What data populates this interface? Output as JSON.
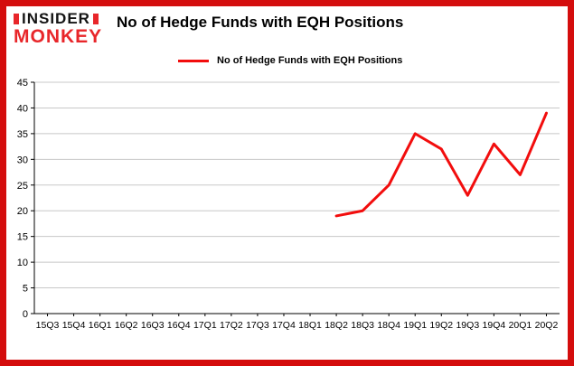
{
  "branding": {
    "logo_line1": "INSIDER",
    "logo_line2": "MONKEY",
    "logo_accent_color": "#e8262a",
    "frame_color": "#d40d0d"
  },
  "header": {
    "title": "No of Hedge Funds with EQH Positions"
  },
  "legend": {
    "label": "No of Hedge Funds with EQH Positions",
    "color": "#f20d0d"
  },
  "chart_data": {
    "type": "line",
    "title": "No of Hedge Funds with EQH Positions",
    "categories": [
      "15Q3",
      "15Q4",
      "16Q1",
      "16Q2",
      "16Q3",
      "16Q4",
      "17Q1",
      "17Q2",
      "17Q3",
      "17Q4",
      "18Q1",
      "18Q2",
      "18Q3",
      "18Q4",
      "19Q1",
      "19Q2",
      "19Q3",
      "19Q4",
      "20Q1",
      "20Q2"
    ],
    "series": [
      {
        "name": "No of Hedge Funds with EQH Positions",
        "color": "#f20d0d",
        "values": [
          null,
          null,
          null,
          null,
          null,
          null,
          null,
          null,
          null,
          null,
          null,
          19,
          20,
          25,
          35,
          32,
          23,
          33,
          27,
          39
        ]
      }
    ],
    "ylabel": "",
    "xlabel": "",
    "ylim": [
      0,
      45
    ],
    "ytick_step": 5,
    "grid": true,
    "gridline_color": "#c8c8c8",
    "axis_color": "#000000",
    "legend_position": "top-left"
  }
}
